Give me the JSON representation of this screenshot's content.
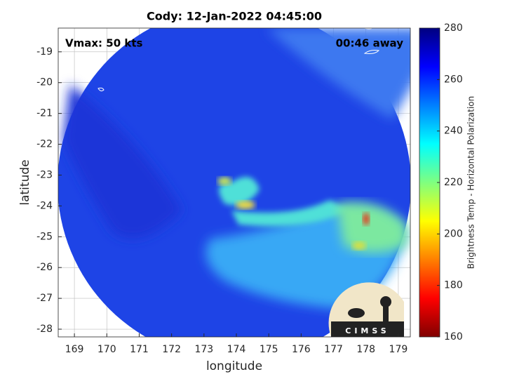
{
  "title": "Cody: 12-Jan-2022 04:45:00",
  "annotations": {
    "vmax": "Vmax: 50 kts",
    "time_away": "00:46 away"
  },
  "map": {
    "xlabel": "longitude",
    "ylabel": "latitude",
    "xlim": [
      168.5,
      179.37
    ],
    "ylim": [
      -28.25,
      -18.23
    ],
    "xticks": [
      169,
      170,
      171,
      172,
      173,
      174,
      175,
      176,
      177,
      178,
      179
    ],
    "yticks": [
      -19,
      -20,
      -21,
      -22,
      -23,
      -24,
      -25,
      -26,
      -27,
      -28
    ],
    "grid": true
  },
  "colorbar": {
    "label": "Brightness Temp - Horizontal Polarization",
    "lim": [
      160,
      280
    ],
    "ticks": [
      160,
      180,
      200,
      220,
      240,
      260,
      280
    ]
  },
  "logo": {
    "text": "CIMSS"
  }
}
